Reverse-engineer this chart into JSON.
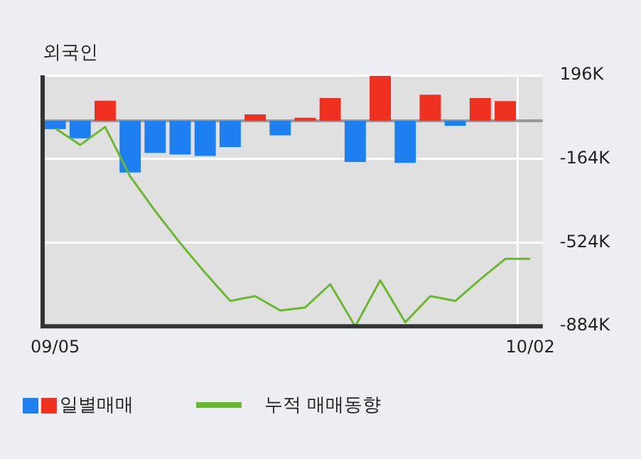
{
  "chart_data": {
    "type": "bar",
    "title": "외국인",
    "categories": [
      "09/05",
      null,
      null,
      null,
      null,
      null,
      null,
      null,
      null,
      null,
      null,
      null,
      null,
      null,
      null,
      null,
      null,
      null,
      null,
      "10/02"
    ],
    "series": [
      {
        "name": "일별매매",
        "colors": [
          "#1e7ff0",
          "#1e7ff0",
          "#f03020",
          "#1e7ff0",
          "#1e7ff0",
          "#1e7ff0",
          "#1e7ff0",
          "#1e7ff0",
          "#f03020",
          "#1e7ff0",
          "#f03020",
          "#f03020",
          "#1e7ff0",
          "#f03020",
          "#1e7ff0",
          "#f03020",
          "#1e7ff0",
          "#f03020",
          "#f03020",
          null
        ],
        "values": [
          -36000,
          -75000,
          87000,
          -222000,
          -138000,
          -145000,
          -151000,
          -113000,
          28000,
          -62000,
          13000,
          98000,
          -177000,
          194000,
          -181000,
          113000,
          -21000,
          98000,
          85000,
          null
        ]
      },
      {
        "name": "누적 매매동향",
        "type": "line",
        "color": "#6ab82e",
        "values": [
          -32000,
          -104000,
          -26000,
          -239000,
          -388000,
          -526000,
          -654000,
          -775000,
          -754000,
          -816000,
          -803000,
          -703000,
          -884000,
          -686000,
          -867000,
          -754000,
          -775000,
          -682000,
          -594000,
          -594000
        ]
      }
    ],
    "ylim": [
      -884000,
      196000
    ],
    "yticks": [
      {
        "value": 196000,
        "label": "196K"
      },
      {
        "value": -164000,
        "label": "-164K"
      },
      {
        "value": -524000,
        "label": "-524K"
      },
      {
        "value": -884000,
        "label": "-884K"
      }
    ],
    "ref_lines": [
      {
        "axis": "y",
        "value": 0,
        "color": "#999999"
      }
    ],
    "grid": true,
    "legend": "bottom",
    "marker": "none",
    "line_style": "solid"
  }
}
